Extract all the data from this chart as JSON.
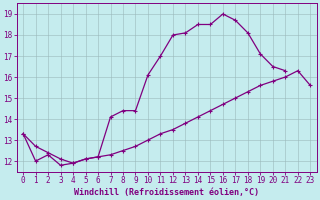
{
  "xlabel": "Windchill (Refroidissement éolien,°C)",
  "line1_x": [
    0,
    1,
    2,
    3,
    4,
    5,
    6,
    7,
    8,
    9,
    10,
    11,
    12,
    13,
    14,
    15,
    16,
    17,
    18,
    19,
    20,
    21
  ],
  "line1_y": [
    13.3,
    12.0,
    12.3,
    11.8,
    11.9,
    12.1,
    12.2,
    14.1,
    14.4,
    14.4,
    16.1,
    17.0,
    18.0,
    18.1,
    18.5,
    18.5,
    19.0,
    18.7,
    18.1,
    17.1,
    16.5,
    16.3
  ],
  "line2_x": [
    0,
    1,
    2,
    3,
    4,
    5,
    6,
    7,
    8,
    9,
    10,
    11,
    12,
    13,
    14,
    15,
    16,
    17,
    18,
    19,
    20,
    21,
    22,
    23
  ],
  "line2_y": [
    13.3,
    12.7,
    12.4,
    12.1,
    11.9,
    12.1,
    12.2,
    12.3,
    12.5,
    12.7,
    13.0,
    13.3,
    13.5,
    13.8,
    14.1,
    14.4,
    14.7,
    15.0,
    15.3,
    15.6,
    15.8,
    16.0,
    16.3,
    15.6
  ],
  "line_color": "#800080",
  "marker": "+",
  "marker_size": 3,
  "marker_lw": 0.8,
  "line_width": 0.9,
  "bg_color": "#c5ecee",
  "grid_color": "#9ab8ba",
  "xlim": [
    -0.5,
    23.5
  ],
  "ylim": [
    11.5,
    19.5
  ],
  "yticks": [
    12,
    13,
    14,
    15,
    16,
    17,
    18,
    19
  ],
  "xticks": [
    0,
    1,
    2,
    3,
    4,
    5,
    6,
    7,
    8,
    9,
    10,
    11,
    12,
    13,
    14,
    15,
    16,
    17,
    18,
    19,
    20,
    21,
    22,
    23
  ],
  "tick_fontsize": 5.5,
  "xlabel_fontsize": 6.0
}
